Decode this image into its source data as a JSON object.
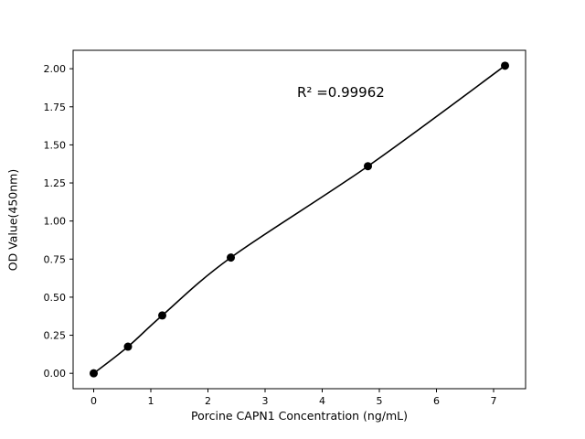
{
  "figure": {
    "background": "#ffffff"
  },
  "chart_data": {
    "type": "scatter",
    "title": "",
    "xlabel": "Porcine CAPN1 Concentration (ng/mL)",
    "ylabel": "OD Value(450nm)",
    "annotation": "R² =0.99962",
    "x": [
      0,
      0.6,
      1.2,
      2.4,
      4.8,
      7.2
    ],
    "y": [
      0.0,
      0.175,
      0.38,
      0.76,
      1.36,
      2.02
    ],
    "fit_line": true,
    "xlim": [
      -0.36,
      7.56
    ],
    "ylim": [
      -0.101,
      2.121
    ],
    "xticks": [
      0,
      1,
      2,
      3,
      4,
      5,
      6,
      7
    ],
    "xtick_labels": [
      "0",
      "1",
      "2",
      "3",
      "4",
      "5",
      "6",
      "7"
    ],
    "yticks": [
      0.0,
      0.25,
      0.5,
      0.75,
      1.0,
      1.25,
      1.5,
      1.75,
      2.0
    ],
    "ytick_labels": [
      "0.00",
      "0.25",
      "0.50",
      "0.75",
      "1.00",
      "1.25",
      "1.50",
      "1.75",
      "2.00"
    ],
    "grid": false,
    "legend": null,
    "marker_color": "#000000",
    "line_color": "#000000",
    "spine_color": "#000000"
  }
}
